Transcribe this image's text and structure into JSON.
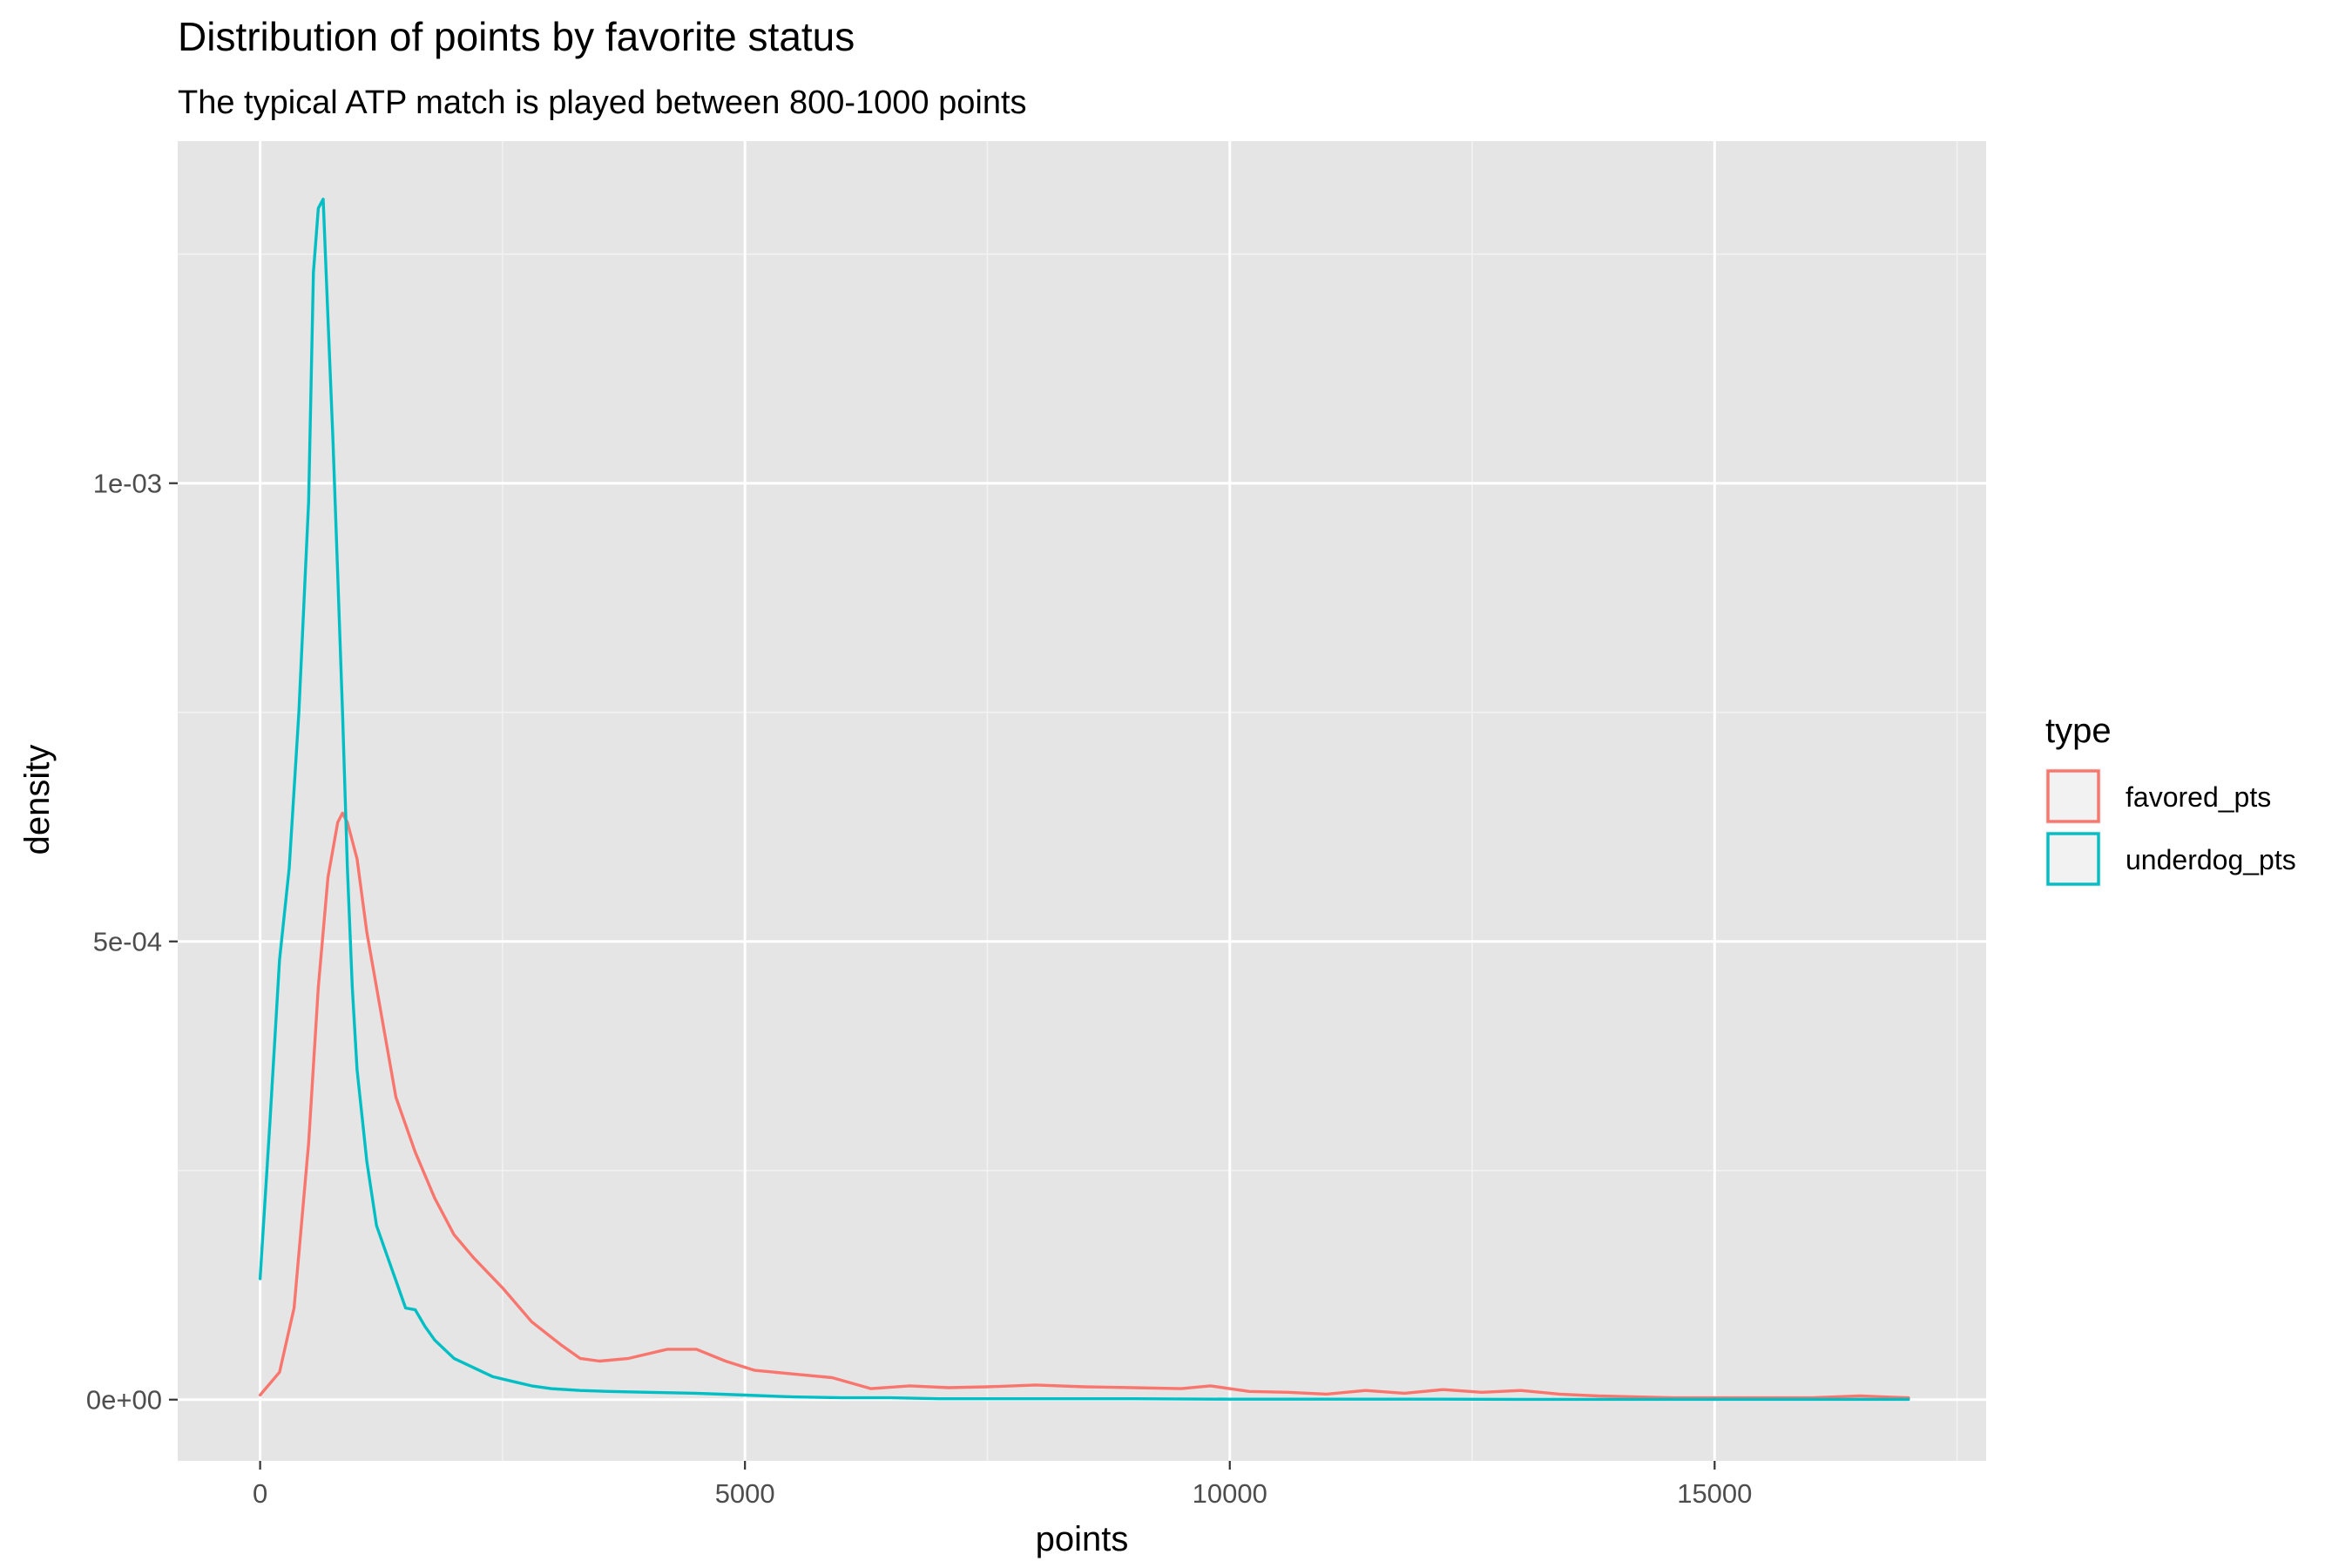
{
  "chart_data": {
    "type": "line",
    "title": "Distribution of points by favorite status",
    "subtitle": "The typical ATP match is played between 800-1000 points",
    "xlabel": "points",
    "ylabel": "density",
    "xlim": [
      -850,
      17800
    ],
    "ylim": [
      -6.68e-05,
      0.0013733
    ],
    "x_ticks": [
      0,
      5000,
      10000,
      15000
    ],
    "x_tick_labels": [
      "0",
      "5000",
      "10000",
      "15000"
    ],
    "x_minor_ticks": [
      2500,
      7500,
      12500,
      17500
    ],
    "y_ticks": [
      0,
      0.0005,
      0.001
    ],
    "y_tick_labels": [
      "0e+00",
      "5e-04",
      "1e-03"
    ],
    "y_minor_ticks": [
      0.00025,
      0.00075,
      0.00125
    ],
    "grid": true,
    "panel_background": "#e5e5e5",
    "legend": {
      "title": "type",
      "placement": "right",
      "entries": [
        "favored_pts",
        "underdog_pts"
      ]
    },
    "series": [
      {
        "name": "favored_pts",
        "color": "#F8766D",
        "x": [
          0,
          200,
          350,
          500,
          600,
          700,
          800,
          850,
          900,
          1000,
          1100,
          1250,
          1400,
          1600,
          1800,
          2000,
          2200,
          2500,
          2800,
          3100,
          3300,
          3500,
          3800,
          4200,
          4500,
          4800,
          5100,
          5500,
          5900,
          6300,
          6700,
          7100,
          7500,
          8000,
          8500,
          9000,
          9500,
          9800,
          10200,
          10600,
          11000,
          11400,
          11800,
          12200,
          12600,
          13000,
          13400,
          13800,
          14200,
          14600,
          15000,
          15500,
          16000,
          16500,
          17000
        ],
        "y": [
          5e-06,
          3e-05,
          0.0001,
          0.00028,
          0.00045,
          0.00057,
          0.00063,
          0.00064,
          0.00063,
          0.00059,
          0.00051,
          0.00042,
          0.00033,
          0.00027,
          0.00022,
          0.00018,
          0.000155,
          0.000122,
          8.5e-05,
          6e-05,
          4.5e-05,
          4.2e-05,
          4.5e-05,
          5.5e-05,
          5.5e-05,
          4.2e-05,
          3.2e-05,
          2.8e-05,
          2.4e-05,
          1.2e-05,
          1.5e-05,
          1.3e-05,
          1.4e-05,
          1.6e-05,
          1.4e-05,
          1.3e-05,
          1.2e-05,
          1.5e-05,
          9e-06,
          8e-06,
          6e-06,
          1e-05,
          7e-06,
          1.1e-05,
          8e-06,
          1e-05,
          6e-06,
          4e-06,
          3e-06,
          2e-06,
          2e-06,
          2e-06,
          2e-06,
          4e-06,
          2e-06
        ]
      },
      {
        "name": "underdog_pts",
        "color": "#00BFC4",
        "x": [
          0,
          100,
          200,
          300,
          400,
          500,
          550,
          600,
          650,
          700,
          750,
          800,
          850,
          900,
          950,
          1000,
          1050,
          1100,
          1200,
          1300,
          1400,
          1500,
          1600,
          1700,
          1800,
          1900,
          2000,
          2200,
          2400,
          2600,
          2800,
          3000,
          3300,
          3600,
          4000,
          4500,
          5000,
          5500,
          6000,
          6500,
          7000,
          7500,
          8000,
          9000,
          10000,
          11000,
          12000,
          13000,
          14000,
          15000,
          16000,
          17000
        ],
        "y": [
          0.000132,
          0.0003,
          0.00048,
          0.00058,
          0.00075,
          0.00098,
          0.00123,
          0.0013,
          0.00131,
          0.00118,
          0.00105,
          0.0009,
          0.00075,
          0.00058,
          0.00045,
          0.00036,
          0.00031,
          0.00026,
          0.00019,
          0.00016,
          0.00013,
          0.0001,
          9.8e-05,
          8e-05,
          6.5e-05,
          5.5e-05,
          4.5e-05,
          3.5e-05,
          2.5e-05,
          2e-05,
          1.5e-05,
          1.2e-05,
          1e-05,
          9e-06,
          8e-06,
          7e-06,
          5e-06,
          3e-06,
          2e-06,
          2e-06,
          1e-06,
          1e-06,
          1e-06,
          1e-06,
          5e-07,
          5e-07,
          5e-07,
          3e-07,
          3e-07,
          3e-07,
          3e-07,
          3e-07
        ]
      }
    ]
  }
}
